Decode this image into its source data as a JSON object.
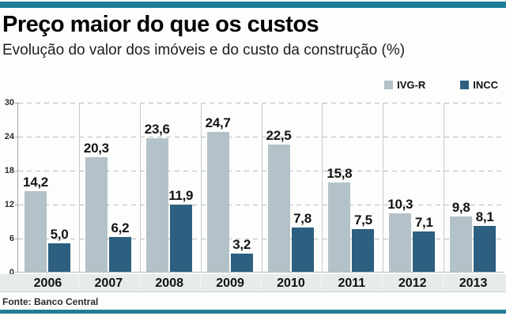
{
  "header": {
    "title": "Preço maior do que os custos",
    "subtitle": "Evolução do valor dos imóveis e do custo da construção (%)"
  },
  "legend": {
    "items": [
      {
        "label": "IVG-R",
        "color": "#b3c2c9"
      },
      {
        "label": "INCC",
        "color": "#2c5f80"
      }
    ]
  },
  "chart_data": {
    "type": "bar",
    "title": "Preço maior do que os custos",
    "subtitle": "Evolução do valor dos imóveis e do custo da construção (%)",
    "categories": [
      "2006",
      "2007",
      "2008",
      "2009",
      "2010",
      "2011",
      "2012",
      "2013"
    ],
    "series": [
      {
        "name": "IVG-R",
        "color": "#b3c2c9",
        "values": [
          14.2,
          20.3,
          23.6,
          24.7,
          22.5,
          15.8,
          10.3,
          9.8
        ]
      },
      {
        "name": "INCC",
        "color": "#2c5f80",
        "values": [
          5.0,
          6.2,
          11.9,
          3.2,
          7.8,
          7.5,
          7.1,
          8.1
        ]
      }
    ],
    "value_label_decimal_separator": ",",
    "xlabel": "",
    "ylabel": "",
    "ylim": [
      0,
      30
    ],
    "yticks": [
      0,
      6,
      12,
      18,
      24,
      30
    ],
    "grid": "dashed-horizontal",
    "legend_position": "top-right"
  },
  "footer": {
    "source": "Fonte: Banco Central"
  },
  "colors": {
    "accent_teal": "#1f7e97",
    "band_background": "#e7ebec",
    "ivgr_bar": "#b3c2c9",
    "incc_bar": "#2c5f80"
  }
}
